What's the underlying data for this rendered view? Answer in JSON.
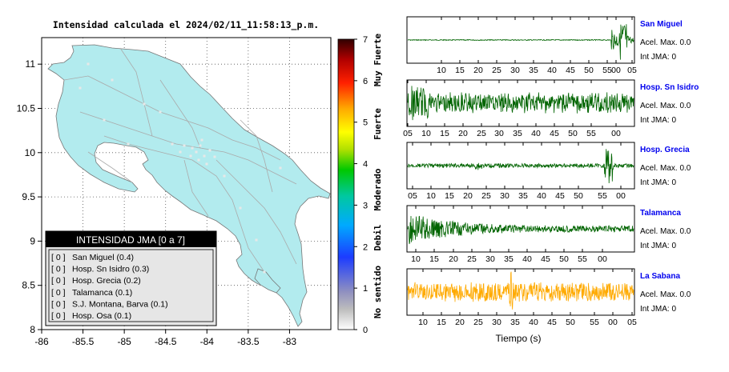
{
  "map": {
    "title": "Intensidad calculada el 2024/02/11_11:58:13_p.m.",
    "x_ticks": [
      "-86",
      "-85.5",
      "-85",
      "-84.5",
      "-84",
      "-83.5",
      "-83"
    ],
    "y_ticks": [
      "11",
      "10.5",
      "10",
      "9.5",
      "9",
      "8.5",
      "8"
    ],
    "x_range": [
      -86,
      -82.5
    ],
    "y_range": [
      8,
      11.3
    ],
    "land_color": "#b2ebee",
    "legend": {
      "title": "INTENSIDAD JMA [0 a 7]",
      "items": [
        {
          "level": "[ 0 ]",
          "label": "San Miguel (0.4)"
        },
        {
          "level": "[ 0 ]",
          "label": "Hosp. Sn Isidro (0.3)"
        },
        {
          "level": "[ 0 ]",
          "label": "Hosp. Grecia (0.2)"
        },
        {
          "level": "[ 0 ]",
          "label": "Talamanca (0.1)"
        },
        {
          "level": "[ 0 ]",
          "label": "S.J. Montana, Barva (0.1)"
        },
        {
          "level": "[ 0 ]",
          "label": "Hosp. Osa (0.1)"
        }
      ]
    }
  },
  "colorbar": {
    "ticks": [
      "7",
      "6",
      "5",
      "4",
      "3",
      "2",
      "1",
      "0"
    ],
    "range": [
      0,
      7
    ],
    "categories": [
      "Muy Fuerte",
      "Fuerte",
      "Moderado",
      "Debil",
      "No sentido"
    ]
  },
  "chart_data": {
    "type": "line",
    "xlabel": "Tiempo (s)",
    "panels": [
      {
        "station": "San Miguel",
        "accel": "Acel. Max. 0.0",
        "jma": "Int JMA: 0",
        "ticks": [
          "10",
          "15",
          "20",
          "25",
          "30",
          "35",
          "40",
          "45",
          "50",
          "55",
          "00",
          "05"
        ],
        "color": "#006400",
        "pattern": "late_burst"
      },
      {
        "station": "Hosp. Sn Isidro",
        "accel": "Acel. Max. 0.0",
        "jma": "Int JMA: 0",
        "ticks": [
          "05",
          "10",
          "15",
          "20",
          "25",
          "30",
          "35",
          "40",
          "45",
          "50",
          "55",
          "00"
        ],
        "color": "#006400",
        "pattern": "noisy"
      },
      {
        "station": "Hosp. Grecia",
        "accel": "Acel. Max. 0.0",
        "jma": "Int JMA: 0",
        "ticks": [
          "05",
          "10",
          "15",
          "20",
          "25",
          "30",
          "35",
          "40",
          "45",
          "50",
          "55",
          "00"
        ],
        "color": "#006400",
        "pattern": "spikes"
      },
      {
        "station": "Talamanca",
        "accel": "Acel. Max. 0.0",
        "jma": "Int JMA: 0",
        "ticks": [
          "10",
          "15",
          "20",
          "25",
          "30",
          "35",
          "40",
          "45",
          "50",
          "55",
          "00"
        ],
        "color": "#006400",
        "pattern": "decay"
      },
      {
        "station": "La Sabana",
        "accel": "Acel. Max. 0.0",
        "jma": "Int JMA: 0",
        "ticks": [
          "10",
          "15",
          "20",
          "25",
          "30",
          "35",
          "40",
          "45",
          "50",
          "55",
          "00",
          "05"
        ],
        "color": "#ffaa00",
        "pattern": "noisy_spike"
      }
    ]
  }
}
